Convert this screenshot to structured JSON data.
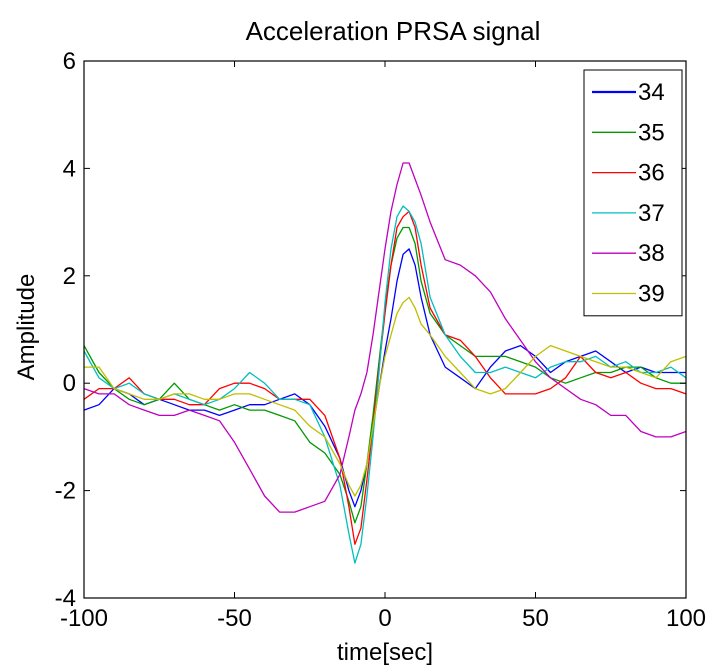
{
  "chart_data": {
    "type": "line",
    "title": "Acceleration PRSA signal",
    "xlabel": "time[sec]",
    "ylabel": "Amplitude",
    "xlim": [
      -100,
      100
    ],
    "ylim": [
      -4,
      6
    ],
    "xticks": [
      -100,
      -50,
      0,
      50,
      100
    ],
    "yticks": [
      -4,
      -2,
      0,
      2,
      4,
      6
    ],
    "grid": false,
    "legend_position": "top-right",
    "series": [
      {
        "name": "34",
        "color": "#0000ff",
        "x": [
          -100,
          -95,
          -90,
          -85,
          -80,
          -75,
          -70,
          -65,
          -60,
          -55,
          -50,
          -45,
          -40,
          -35,
          -30,
          -25,
          -20,
          -15,
          -12,
          -10,
          -8,
          -6,
          -4,
          -2,
          0,
          2,
          4,
          6,
          8,
          10,
          12,
          15,
          20,
          25,
          30,
          35,
          40,
          45,
          50,
          55,
          60,
          65,
          70,
          75,
          80,
          85,
          90,
          95,
          100
        ],
        "values": [
          -0.5,
          -0.4,
          -0.1,
          -0.2,
          -0.4,
          -0.3,
          -0.4,
          -0.5,
          -0.5,
          -0.6,
          -0.5,
          -0.4,
          -0.4,
          -0.3,
          -0.2,
          -0.4,
          -0.8,
          -1.4,
          -2.0,
          -2.3,
          -2.0,
          -1.5,
          -0.8,
          -0.1,
          0.6,
          1.2,
          1.9,
          2.4,
          2.5,
          2.2,
          1.6,
          0.9,
          0.3,
          0.1,
          -0.1,
          0.3,
          0.6,
          0.7,
          0.5,
          0.2,
          0.4,
          0.5,
          0.6,
          0.4,
          0.2,
          0.3,
          0.2,
          0.2,
          0.2
        ]
      },
      {
        "name": "35",
        "color": "#009900",
        "x": [
          -100,
          -95,
          -90,
          -85,
          -80,
          -75,
          -70,
          -65,
          -60,
          -55,
          -50,
          -45,
          -40,
          -35,
          -30,
          -25,
          -20,
          -15,
          -12,
          -10,
          -8,
          -6,
          -4,
          -2,
          0,
          2,
          4,
          6,
          8,
          10,
          12,
          15,
          20,
          25,
          30,
          35,
          40,
          45,
          50,
          55,
          60,
          65,
          70,
          75,
          80,
          85,
          90,
          95,
          100
        ],
        "values": [
          0.7,
          0.2,
          -0.1,
          -0.3,
          -0.4,
          -0.3,
          0.0,
          -0.3,
          -0.4,
          -0.5,
          -0.4,
          -0.5,
          -0.5,
          -0.6,
          -0.7,
          -1.1,
          -1.3,
          -1.7,
          -2.2,
          -2.6,
          -2.3,
          -1.5,
          -0.6,
          0.4,
          1.4,
          2.2,
          2.7,
          2.9,
          2.9,
          2.6,
          1.9,
          1.3,
          0.9,
          0.7,
          0.5,
          0.5,
          0.5,
          0.4,
          0.3,
          0.1,
          0.0,
          0.1,
          0.2,
          0.2,
          0.3,
          0.3,
          0.1,
          0.0,
          0.0
        ]
      },
      {
        "name": "36",
        "color": "#ff0000",
        "x": [
          -100,
          -95,
          -90,
          -85,
          -80,
          -75,
          -70,
          -65,
          -60,
          -55,
          -50,
          -45,
          -40,
          -35,
          -30,
          -25,
          -20,
          -15,
          -12,
          -10,
          -8,
          -6,
          -4,
          -2,
          0,
          2,
          4,
          6,
          8,
          10,
          12,
          15,
          20,
          25,
          30,
          35,
          40,
          45,
          50,
          55,
          60,
          65,
          70,
          75,
          80,
          85,
          90,
          95,
          100
        ],
        "values": [
          -0.3,
          -0.1,
          -0.1,
          0.1,
          -0.2,
          -0.3,
          -0.3,
          -0.4,
          -0.4,
          -0.1,
          -0.0,
          0.0,
          -0.1,
          -0.3,
          -0.3,
          -0.3,
          -0.6,
          -1.4,
          -2.3,
          -3.0,
          -2.7,
          -1.8,
          -0.8,
          0.3,
          1.3,
          2.2,
          2.9,
          3.1,
          3.2,
          2.9,
          2.2,
          1.4,
          0.9,
          0.8,
          0.5,
          0.1,
          -0.2,
          -0.2,
          -0.2,
          -0.1,
          0.1,
          0.5,
          0.2,
          0.1,
          0.2,
          0.0,
          -0.1,
          -0.1,
          -0.2
        ]
      },
      {
        "name": "37",
        "color": "#00bfbf",
        "x": [
          -100,
          -95,
          -90,
          -85,
          -80,
          -75,
          -70,
          -65,
          -60,
          -55,
          -50,
          -45,
          -40,
          -35,
          -30,
          -25,
          -20,
          -15,
          -12,
          -10,
          -8,
          -6,
          -4,
          -2,
          0,
          2,
          4,
          6,
          8,
          10,
          12,
          15,
          20,
          25,
          30,
          35,
          40,
          45,
          50,
          55,
          60,
          65,
          70,
          75,
          80,
          85,
          90,
          95,
          100
        ],
        "values": [
          0.6,
          0.1,
          -0.1,
          0.0,
          -0.2,
          -0.3,
          -0.2,
          -0.3,
          -0.4,
          -0.3,
          -0.1,
          0.2,
          0.0,
          -0.3,
          -0.3,
          -0.4,
          -1.0,
          -1.9,
          -2.8,
          -3.35,
          -3.0,
          -2.1,
          -1.0,
          0.2,
          1.5,
          2.5,
          3.1,
          3.3,
          3.2,
          3.0,
          2.6,
          1.6,
          0.9,
          0.5,
          0.2,
          0.2,
          0.3,
          0.2,
          0.1,
          0.3,
          0.4,
          0.4,
          0.5,
          0.3,
          0.4,
          0.2,
          0.2,
          0.3,
          0.1
        ]
      },
      {
        "name": "38",
        "color": "#bf00bf",
        "x": [
          -100,
          -95,
          -90,
          -85,
          -80,
          -75,
          -70,
          -65,
          -60,
          -55,
          -50,
          -45,
          -40,
          -35,
          -30,
          -25,
          -20,
          -15,
          -12,
          -10,
          -8,
          -6,
          -4,
          -2,
          0,
          2,
          4,
          6,
          8,
          10,
          12,
          15,
          20,
          25,
          30,
          35,
          40,
          45,
          50,
          55,
          60,
          65,
          70,
          75,
          80,
          85,
          90,
          95,
          100
        ],
        "values": [
          -0.1,
          -0.2,
          -0.2,
          -0.4,
          -0.5,
          -0.6,
          -0.6,
          -0.5,
          -0.6,
          -0.7,
          -1.1,
          -1.6,
          -2.1,
          -2.4,
          -2.4,
          -2.3,
          -2.2,
          -1.7,
          -1.0,
          -0.5,
          -0.2,
          0.2,
          0.9,
          1.7,
          2.5,
          3.2,
          3.7,
          4.1,
          4.1,
          3.8,
          3.5,
          3.0,
          2.3,
          2.2,
          2.0,
          1.7,
          1.2,
          0.8,
          0.4,
          0.1,
          -0.1,
          -0.3,
          -0.4,
          -0.6,
          -0.6,
          -0.9,
          -1.0,
          -1.0,
          -0.9
        ]
      },
      {
        "name": "39",
        "color": "#bfbf00",
        "x": [
          -100,
          -95,
          -90,
          -85,
          -80,
          -75,
          -70,
          -65,
          -60,
          -55,
          -50,
          -45,
          -40,
          -35,
          -30,
          -25,
          -20,
          -15,
          -12,
          -10,
          -8,
          -6,
          -4,
          -2,
          0,
          2,
          4,
          6,
          8,
          10,
          12,
          15,
          20,
          25,
          30,
          35,
          40,
          45,
          50,
          55,
          60,
          65,
          70,
          75,
          80,
          85,
          90,
          95,
          100
        ],
        "values": [
          0.3,
          0.3,
          -0.1,
          -0.2,
          -0.3,
          -0.3,
          -0.2,
          -0.2,
          -0.3,
          -0.3,
          -0.2,
          -0.2,
          -0.3,
          -0.4,
          -0.5,
          -0.8,
          -1.0,
          -1.5,
          -1.9,
          -2.1,
          -1.9,
          -1.5,
          -0.8,
          -0.1,
          0.5,
          0.9,
          1.3,
          1.5,
          1.6,
          1.4,
          1.1,
          0.9,
          0.5,
          0.2,
          -0.1,
          -0.2,
          -0.1,
          0.2,
          0.5,
          0.7,
          0.6,
          0.5,
          0.4,
          0.3,
          0.3,
          0.2,
          0.1,
          0.4,
          0.5
        ]
      }
    ]
  }
}
